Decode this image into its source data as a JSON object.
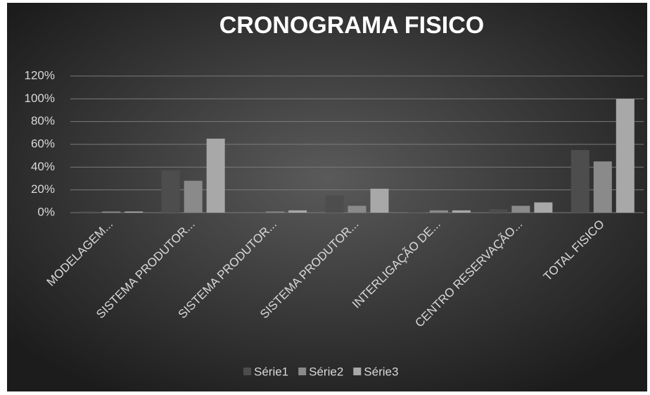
{
  "chart_data": {
    "type": "bar",
    "title": "CRONOGRAMA FISICO",
    "categories": [
      "MODELAGEM...",
      "SISTEMA PRODUTOR...",
      "SISTEMA PRODUTOR...",
      "SISTEMA PRODUTOR...",
      "INTERLIGAÇÃO DE...",
      "CENTRO RESERVAÇÃO...",
      "TOTAL FISICO"
    ],
    "series": [
      {
        "name": "Série1",
        "color": "#4d4d4d",
        "values": [
          1,
          37,
          0,
          15,
          1,
          3,
          55
        ]
      },
      {
        "name": "Série2",
        "color": "#8a8a8a",
        "values": [
          1,
          28,
          1,
          6,
          2,
          6,
          45
        ]
      },
      {
        "name": "Série3",
        "color": "#a8a8a8",
        "values": [
          1,
          65,
          2,
          21,
          2,
          9,
          100
        ]
      }
    ],
    "ylim": [
      0,
      120
    ],
    "yticks": [
      {
        "value": 0,
        "label": "0%"
      },
      {
        "value": 20,
        "label": "20%"
      },
      {
        "value": 40,
        "label": "40%"
      },
      {
        "value": 60,
        "label": "60%"
      },
      {
        "value": 80,
        "label": "80%"
      },
      {
        "value": 100,
        "label": "100%"
      },
      {
        "value": 120,
        "label": "120%"
      }
    ],
    "grid": true,
    "legend": "bottom"
  }
}
